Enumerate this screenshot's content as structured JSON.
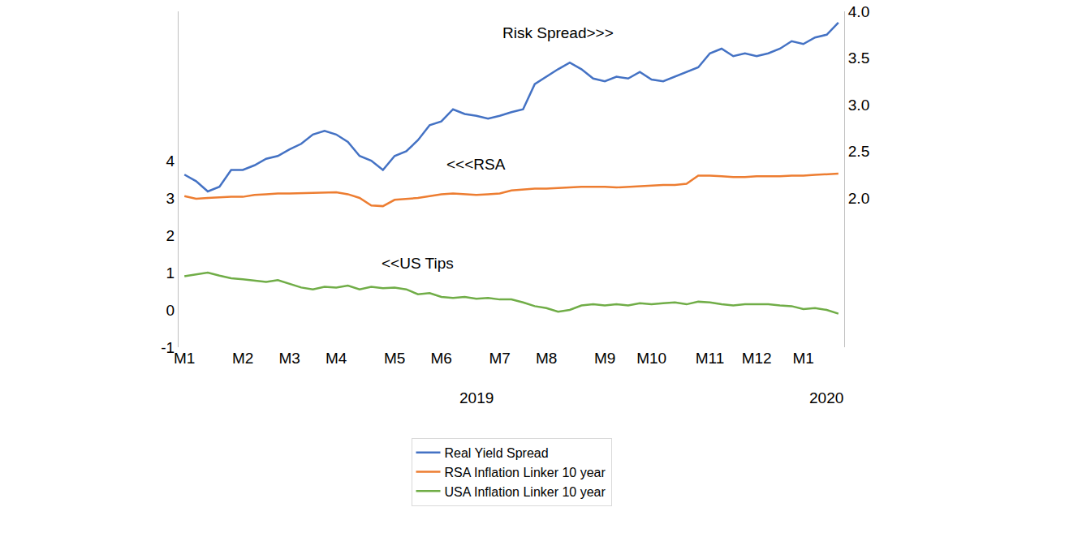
{
  "chart_data": {
    "type": "line",
    "categories": [
      "M1",
      null,
      null,
      null,
      null,
      "M2",
      null,
      null,
      null,
      "M3",
      null,
      null,
      null,
      "M4",
      null,
      null,
      null,
      null,
      "M5",
      null,
      null,
      null,
      "M6",
      null,
      null,
      null,
      null,
      "M7",
      null,
      null,
      null,
      "M8",
      null,
      null,
      null,
      null,
      "M9",
      null,
      null,
      null,
      "M10",
      null,
      null,
      null,
      null,
      "M11",
      null,
      null,
      null,
      "M12",
      null,
      null,
      null,
      "M1",
      null,
      null,
      null
    ],
    "series": [
      {
        "name": "Real Yield Spread",
        "color": "#4472C4",
        "axis": "y2",
        "values": [
          2.25,
          2.18,
          2.07,
          2.12,
          2.3,
          2.3,
          2.35,
          2.42,
          2.45,
          2.52,
          2.58,
          2.68,
          2.72,
          2.68,
          2.6,
          2.45,
          2.4,
          2.3,
          2.45,
          2.5,
          2.62,
          2.78,
          2.82,
          2.95,
          2.9,
          2.88,
          2.85,
          2.88,
          2.92,
          2.95,
          3.22,
          3.3,
          3.38,
          3.45,
          3.38,
          3.28,
          3.25,
          3.3,
          3.28,
          3.35,
          3.27,
          3.25,
          3.3,
          3.35,
          3.4,
          3.55,
          3.6,
          3.52,
          3.55,
          3.52,
          3.55,
          3.6,
          3.68,
          3.65,
          3.72,
          3.75,
          3.88
        ]
      },
      {
        "name": "RSA Inflation Linker 10 year",
        "color": "#ED7D31",
        "values": [
          3.05,
          2.98,
          3.0,
          3.02,
          3.03,
          3.03,
          3.08,
          3.1,
          3.12,
          3.12,
          3.13,
          3.13,
          3.15,
          3.15,
          3.1,
          3.0,
          2.8,
          2.78,
          2.95,
          2.98,
          3.0,
          3.05,
          3.1,
          3.12,
          3.1,
          3.08,
          3.1,
          3.12,
          3.2,
          3.22,
          3.25,
          3.25,
          3.27,
          3.28,
          3.3,
          3.3,
          3.3,
          3.28,
          3.3,
          3.32,
          3.33,
          3.35,
          3.35,
          3.38,
          3.6,
          3.6,
          3.58,
          3.56,
          3.56,
          3.58,
          3.58,
          3.58,
          3.6,
          3.6,
          3.62,
          3.63,
          3.65
        ]
      },
      {
        "name": "USA Inflation Linker 10 year",
        "color": "#70AD47",
        "values": [
          0.9,
          0.95,
          1.0,
          0.92,
          0.85,
          0.82,
          0.78,
          0.75,
          0.8,
          0.7,
          0.6,
          0.55,
          0.62,
          0.6,
          0.65,
          0.55,
          0.62,
          0.58,
          0.6,
          0.55,
          0.42,
          0.45,
          0.35,
          0.32,
          0.35,
          0.3,
          0.32,
          0.28,
          0.28,
          0.2,
          0.1,
          0.05,
          -0.05,
          0.0,
          0.12,
          0.15,
          0.12,
          0.15,
          0.12,
          0.18,
          0.15,
          0.18,
          0.2,
          0.15,
          0.22,
          0.2,
          0.15,
          0.12,
          0.15,
          0.15,
          0.15,
          0.12,
          0.1,
          0.02,
          0.05,
          0.0,
          -0.1
        ]
      }
    ],
    "ylim": [
      -1,
      8
    ],
    "yticks": [
      -1,
      0,
      1,
      2,
      3,
      4
    ],
    "y2lim": [
      0.4,
      4.0
    ],
    "y2ticks": [
      {
        "value": 2,
        "label": "2.0"
      },
      2.5,
      {
        "value": 3,
        "label": "3.0"
      },
      3.5,
      {
        "value": 4,
        "label": "4.0"
      }
    ],
    "annotations": [
      {
        "text": "Risk Spread>>>",
        "x": 32,
        "y": 3.77,
        "axis": "y2"
      },
      {
        "text": "<<<RSA",
        "x": 25,
        "y": 3.9,
        "axis": "y"
      },
      {
        "text": "<<US Tips",
        "x": 20,
        "y": 1.25,
        "axis": "y"
      }
    ],
    "year_labels": [
      {
        "text": "2019",
        "x": 25
      },
      {
        "text": "2020",
        "x": 55
      }
    ],
    "grid": false,
    "legend": "bottom"
  }
}
